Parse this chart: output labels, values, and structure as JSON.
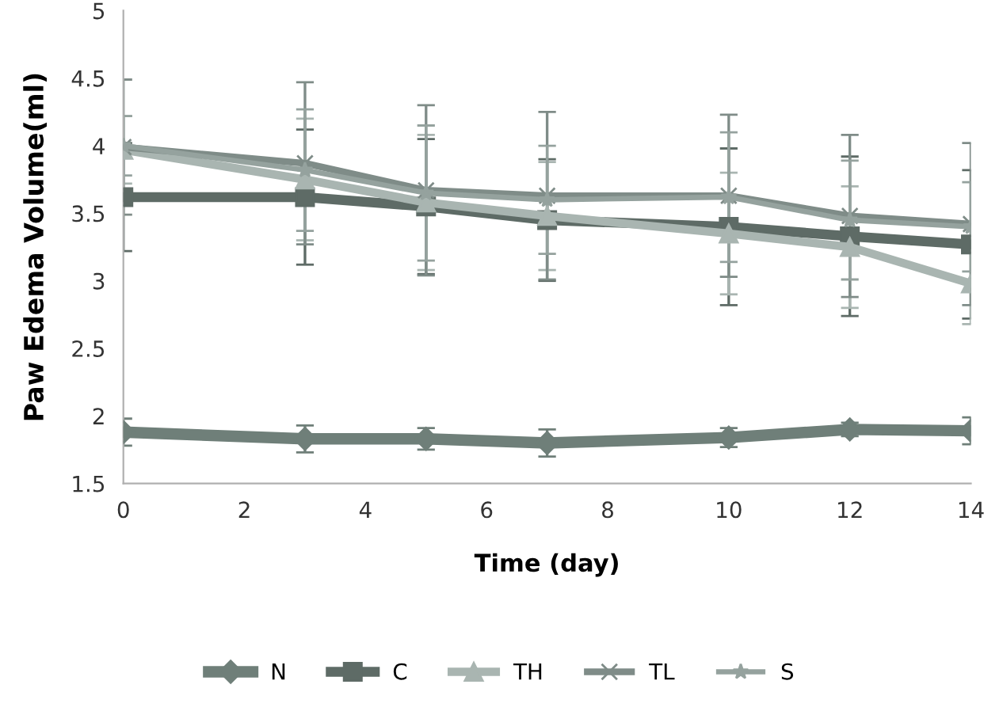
{
  "chart_data": {
    "type": "line",
    "xlabel": "Time (day)",
    "ylabel": "Paw Edema Volume(ml)",
    "x": [
      0,
      3,
      5,
      7,
      10,
      12,
      14
    ],
    "xlim": [
      0,
      14
    ],
    "xticks": [
      0,
      2,
      4,
      6,
      8,
      10,
      12,
      14
    ],
    "ylim": [
      1.5,
      5
    ],
    "yticks": [
      1.5,
      2,
      2.5,
      3,
      3.5,
      4,
      4.5,
      5
    ],
    "grid": false,
    "legend": "bottom",
    "series": [
      {
        "name": "N",
        "color": "#6f7f79",
        "marker": "diamond",
        "values": [
          1.88,
          1.83,
          1.83,
          1.8,
          1.84,
          1.9,
          1.89
        ],
        "errors": [
          0.1,
          0.1,
          0.08,
          0.1,
          0.07,
          0.05,
          0.1
        ]
      },
      {
        "name": "C",
        "color": "#5e6b66",
        "marker": "square",
        "values": [
          3.62,
          3.62,
          3.55,
          3.45,
          3.4,
          3.33,
          3.27
        ],
        "errors": [
          0.4,
          0.5,
          0.5,
          0.45,
          0.58,
          0.59,
          0.55
        ]
      },
      {
        "name": "TH",
        "color": "#a9b5b1",
        "marker": "triangle",
        "values": [
          3.97,
          3.75,
          3.58,
          3.48,
          3.35,
          3.25,
          2.98
        ],
        "errors": [
          0.25,
          0.45,
          0.5,
          0.4,
          0.45,
          0.45,
          0.3
        ]
      },
      {
        "name": "TL",
        "color": "#7f8c88",
        "marker": "cross",
        "values": [
          3.99,
          3.87,
          3.67,
          3.63,
          3.63,
          3.48,
          3.42
        ],
        "errors": [
          0.5,
          0.6,
          0.63,
          0.62,
          0.6,
          0.6,
          0.6
        ]
      },
      {
        "name": "S",
        "color": "#95a29e",
        "marker": "star",
        "values": [
          4.0,
          3.82,
          3.65,
          3.6,
          3.62,
          3.45,
          3.4
        ],
        "errors": [
          0.22,
          0.45,
          0.5,
          0.4,
          0.48,
          0.44,
          0.33
        ]
      }
    ]
  }
}
